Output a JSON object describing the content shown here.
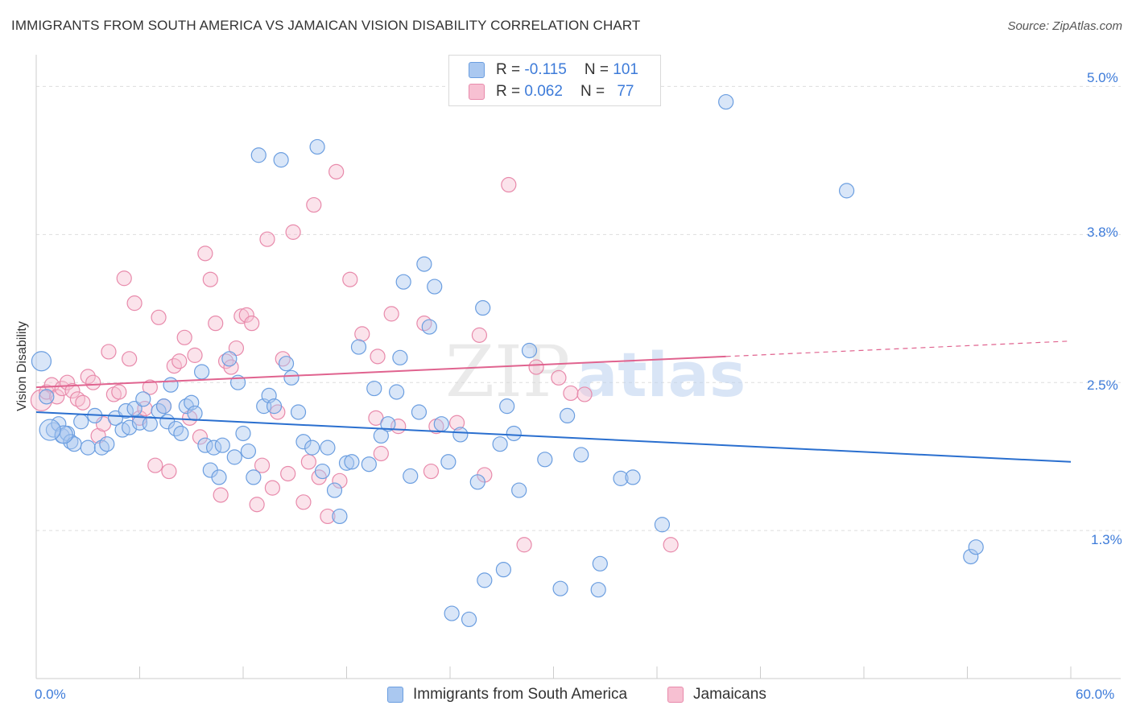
{
  "title": "IMMIGRANTS FROM SOUTH AMERICA VS JAMAICAN VISION DISABILITY CORRELATION CHART",
  "source": "Source: ZipAtlas.com",
  "watermark": {
    "zip": "ZIP",
    "atlas": "atlas"
  },
  "legend_top": {
    "rows": [
      {
        "r_label": "R =",
        "r_value": "-0.115",
        "n_label": "N =",
        "n_value": "101"
      },
      {
        "r_label": "R =",
        "r_value": "0.062",
        "n_label": "N =",
        "n_value": "77"
      }
    ]
  },
  "legend_bottom": {
    "items": [
      {
        "label": "Immigrants from South America"
      },
      {
        "label": "Jamaicans"
      }
    ]
  },
  "x_axis": {
    "min_label": "0.0%",
    "max_label": "60.0%"
  },
  "y_axis": {
    "label": "Vision Disability",
    "ticks": [
      "5.0%",
      "3.8%",
      "2.5%",
      "1.3%"
    ]
  },
  "colors": {
    "blue_fill": "#aac8f0",
    "blue_stroke": "#6b9ee0",
    "blue_line": "#2a6fcf",
    "pink_fill": "#f7c0d2",
    "pink_stroke": "#e88aab",
    "pink_line": "#e0638f",
    "accent_text": "#3d7bd9",
    "grid": "#dddddd"
  },
  "chart_data": {
    "type": "scatter",
    "title": "IMMIGRANTS FROM SOUTH AMERICA VS JAMAICAN VISION DISABILITY CORRELATION CHART",
    "xlabel": "",
    "ylabel": "Vision Disability",
    "xlim": [
      0,
      60
    ],
    "ylim": [
      0,
      5.2
    ],
    "y_ticks": [
      1.25,
      2.5,
      3.75,
      5.0
    ],
    "grid": true,
    "legend_placement": "top-center",
    "series": [
      {
        "name": "Immigrants from South America",
        "color": "#6b9ee0",
        "r": -0.115,
        "n": 101,
        "trend": {
          "x": [
            0,
            60
          ],
          "y": [
            2.25,
            1.83
          ]
        },
        "points": [
          [
            0.3,
            2.68,
            12
          ],
          [
            0.6,
            2.38,
            9
          ],
          [
            1.0,
            2.1,
            9
          ],
          [
            1.3,
            2.15,
            9
          ],
          [
            1.5,
            2.05,
            9
          ],
          [
            1.8,
            2.07,
            9
          ],
          [
            2.0,
            2.0,
            9
          ],
          [
            2.2,
            1.98,
            9
          ],
          [
            2.6,
            2.17,
            9
          ],
          [
            3.0,
            1.95,
            9
          ],
          [
            3.4,
            2.22,
            9
          ],
          [
            3.8,
            1.95,
            9
          ],
          [
            4.1,
            1.98,
            9
          ],
          [
            4.6,
            2.2,
            9
          ],
          [
            5.0,
            2.1,
            9
          ],
          [
            5.2,
            2.26,
            9
          ],
          [
            5.4,
            2.12,
            9
          ],
          [
            5.7,
            2.28,
            9
          ],
          [
            6.0,
            2.16,
            9
          ],
          [
            6.2,
            2.36,
            9
          ],
          [
            6.6,
            2.15,
            9
          ],
          [
            7.1,
            2.26,
            9
          ],
          [
            7.4,
            2.3,
            9
          ],
          [
            7.6,
            2.17,
            9
          ],
          [
            7.8,
            2.48,
            9
          ],
          [
            8.1,
            2.11,
            9
          ],
          [
            8.4,
            2.07,
            9
          ],
          [
            8.7,
            2.3,
            9
          ],
          [
            9.0,
            2.33,
            9
          ],
          [
            9.2,
            2.24,
            9
          ],
          [
            9.6,
            2.59,
            9
          ],
          [
            9.8,
            1.97,
            9
          ],
          [
            10.1,
            1.76,
            9
          ],
          [
            10.3,
            1.95,
            9
          ],
          [
            10.6,
            1.7,
            9
          ],
          [
            10.8,
            1.97,
            9
          ],
          [
            11.2,
            2.7,
            9
          ],
          [
            11.5,
            1.87,
            9
          ],
          [
            11.7,
            2.5,
            9
          ],
          [
            12.0,
            2.07,
            9
          ],
          [
            12.3,
            1.92,
            9
          ],
          [
            12.6,
            1.7,
            9
          ],
          [
            12.9,
            4.42,
            9
          ],
          [
            13.2,
            2.3,
            9
          ],
          [
            13.5,
            2.39,
            9
          ],
          [
            13.8,
            2.3,
            9
          ],
          [
            14.2,
            4.38,
            9
          ],
          [
            14.5,
            2.66,
            9
          ],
          [
            14.8,
            2.54,
            9
          ],
          [
            15.2,
            2.25,
            9
          ],
          [
            15.5,
            2.0,
            9
          ],
          [
            16.0,
            1.95,
            9
          ],
          [
            16.3,
            4.49,
            9
          ],
          [
            16.6,
            1.75,
            9
          ],
          [
            16.9,
            1.95,
            9
          ],
          [
            17.3,
            1.59,
            9
          ],
          [
            17.6,
            1.37,
            9
          ],
          [
            18.0,
            1.82,
            9
          ],
          [
            18.3,
            1.83,
            9
          ],
          [
            18.7,
            2.8,
            9
          ],
          [
            19.3,
            1.81,
            9
          ],
          [
            19.6,
            2.45,
            9
          ],
          [
            20.0,
            2.05,
            9
          ],
          [
            20.4,
            2.15,
            9
          ],
          [
            20.9,
            2.42,
            9
          ],
          [
            21.1,
            2.71,
            9
          ],
          [
            21.3,
            3.35,
            9
          ],
          [
            21.7,
            1.71,
            9
          ],
          [
            22.2,
            2.25,
            9
          ],
          [
            22.5,
            3.5,
            9
          ],
          [
            22.8,
            2.97,
            9
          ],
          [
            23.1,
            3.31,
            9
          ],
          [
            23.5,
            2.15,
            9
          ],
          [
            23.9,
            1.83,
            9
          ],
          [
            24.1,
            0.55,
            9
          ],
          [
            25.1,
            0.5,
            9
          ],
          [
            25.6,
            1.66,
            9
          ],
          [
            25.9,
            3.13,
            9
          ],
          [
            26.0,
            0.83,
            9
          ],
          [
            26.9,
            1.98,
            9
          ],
          [
            27.1,
            0.92,
            9
          ],
          [
            27.3,
            2.3,
            9
          ],
          [
            27.7,
            2.07,
            9
          ],
          [
            28.0,
            1.59,
            9
          ],
          [
            28.6,
            2.77,
            9
          ],
          [
            29.5,
            1.85,
            9
          ],
          [
            30.4,
            0.76,
            9
          ],
          [
            30.8,
            2.22,
            9
          ],
          [
            31.6,
            1.89,
            9
          ],
          [
            32.6,
            0.75,
            9
          ],
          [
            32.7,
            0.97,
            9
          ],
          [
            33.9,
            1.69,
            9
          ],
          [
            34.6,
            1.7,
            9
          ],
          [
            36.3,
            1.3,
            9
          ],
          [
            40.0,
            4.87,
            9
          ],
          [
            47.0,
            4.12,
            9
          ],
          [
            54.2,
            1.03,
            9
          ],
          [
            54.5,
            1.11,
            9
          ],
          [
            1.6,
            2.06,
            11
          ],
          [
            0.8,
            2.1,
            13
          ],
          [
            24.6,
            2.06,
            9
          ]
        ]
      },
      {
        "name": "Jamaicans",
        "color": "#e88aab",
        "r": 0.062,
        "n": 77,
        "trend": {
          "x": [
            0,
            40
          ],
          "y": [
            2.46,
            2.72
          ],
          "dashed_to": [
            60,
            2.85
          ]
        },
        "points": [
          [
            0.3,
            2.35,
            13
          ],
          [
            0.6,
            2.42,
            9
          ],
          [
            0.9,
            2.48,
            9
          ],
          [
            1.2,
            2.38,
            9
          ],
          [
            1.5,
            2.45,
            9
          ],
          [
            1.8,
            2.5,
            9
          ],
          [
            2.1,
            2.43,
            9
          ],
          [
            2.4,
            2.36,
            9
          ],
          [
            2.7,
            2.33,
            9
          ],
          [
            3.0,
            2.55,
            9
          ],
          [
            3.3,
            2.5,
            9
          ],
          [
            3.6,
            2.05,
            9
          ],
          [
            3.9,
            2.15,
            9
          ],
          [
            4.2,
            2.76,
            9
          ],
          [
            4.5,
            2.4,
            9
          ],
          [
            4.8,
            2.42,
            9
          ],
          [
            5.1,
            3.38,
            9
          ],
          [
            5.4,
            2.7,
            9
          ],
          [
            5.7,
            3.17,
            9
          ],
          [
            6.0,
            2.2,
            9
          ],
          [
            6.3,
            2.28,
            9
          ],
          [
            6.6,
            2.46,
            9
          ],
          [
            6.9,
            1.8,
            9
          ],
          [
            7.1,
            3.05,
            9
          ],
          [
            7.4,
            2.3,
            9
          ],
          [
            7.7,
            1.75,
            9
          ],
          [
            8.0,
            2.64,
            9
          ],
          [
            8.3,
            2.68,
            9
          ],
          [
            8.6,
            2.88,
            9
          ],
          [
            8.9,
            2.2,
            9
          ],
          [
            9.2,
            2.73,
            9
          ],
          [
            9.5,
            2.04,
            9
          ],
          [
            9.8,
            3.59,
            9
          ],
          [
            10.1,
            3.37,
            9
          ],
          [
            10.4,
            3.0,
            9
          ],
          [
            10.7,
            1.55,
            9
          ],
          [
            11.0,
            2.68,
            9
          ],
          [
            11.3,
            2.63,
            9
          ],
          [
            11.6,
            2.79,
            9
          ],
          [
            11.9,
            3.06,
            9
          ],
          [
            12.2,
            3.07,
            9
          ],
          [
            12.5,
            3.0,
            9
          ],
          [
            12.8,
            1.47,
            9
          ],
          [
            13.1,
            1.8,
            9
          ],
          [
            13.4,
            3.71,
            9
          ],
          [
            13.7,
            1.61,
            9
          ],
          [
            14.0,
            2.25,
            9
          ],
          [
            14.3,
            2.7,
            9
          ],
          [
            14.6,
            1.73,
            9
          ],
          [
            14.9,
            3.77,
            9
          ],
          [
            15.5,
            1.49,
            9
          ],
          [
            15.8,
            1.83,
            9
          ],
          [
            16.1,
            4.0,
            9
          ],
          [
            16.4,
            1.7,
            9
          ],
          [
            16.9,
            1.37,
            9
          ],
          [
            17.4,
            4.28,
            9
          ],
          [
            17.6,
            1.67,
            9
          ],
          [
            18.2,
            3.37,
            9
          ],
          [
            18.9,
            2.91,
            9
          ],
          [
            19.7,
            2.2,
            9
          ],
          [
            20.0,
            1.9,
            9
          ],
          [
            20.6,
            3.08,
            9
          ],
          [
            21.0,
            2.13,
            9
          ],
          [
            22.5,
            3.0,
            9
          ],
          [
            22.9,
            1.75,
            9
          ],
          [
            23.2,
            2.13,
            9
          ],
          [
            24.4,
            2.16,
            9
          ],
          [
            25.7,
            2.9,
            9
          ],
          [
            26.0,
            1.72,
            9
          ],
          [
            27.4,
            4.17,
            9
          ],
          [
            28.3,
            1.13,
            9
          ],
          [
            29.0,
            2.63,
            9
          ],
          [
            30.3,
            2.54,
            9
          ],
          [
            31.0,
            2.41,
            9
          ],
          [
            31.8,
            2.4,
            9
          ],
          [
            19.8,
            2.72,
            9
          ],
          [
            36.8,
            1.13,
            9
          ]
        ]
      }
    ]
  }
}
